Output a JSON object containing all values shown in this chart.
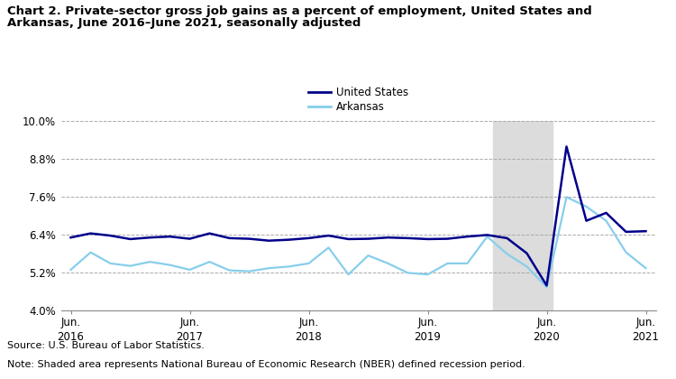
{
  "title_line1": "Chart 2. Private-sector gross job gains as a percent of employment, United States and",
  "title_line2": "Arkansas, June 2016–June 2021, seasonally adjusted",
  "source": "Source: U.S. Bureau of Labor Statistics.",
  "note": "Note: Shaded area represents National Bureau of Economic Research (NBER) defined recession period.",
  "us_data": [
    6.32,
    6.45,
    6.38,
    6.27,
    6.32,
    6.35,
    6.28,
    6.45,
    6.3,
    6.28,
    6.22,
    6.25,
    6.3,
    6.38,
    6.27,
    6.28,
    6.32,
    6.3,
    6.27,
    6.28,
    6.35,
    6.4,
    6.3,
    5.82,
    4.8,
    9.2,
    6.85,
    7.1,
    6.5,
    6.52
  ],
  "ar_data": [
    5.3,
    5.85,
    5.5,
    5.42,
    5.55,
    5.45,
    5.3,
    5.55,
    5.28,
    5.25,
    5.35,
    5.4,
    5.5,
    6.0,
    5.15,
    5.75,
    5.5,
    5.2,
    5.15,
    5.5,
    5.5,
    6.35,
    5.8,
    5.4,
    4.75,
    7.6,
    7.3,
    6.85,
    5.85,
    5.35
  ],
  "us_color": "#00008B",
  "ar_color": "#87CEEB",
  "recession_start": 21.3,
  "recession_end": 24.3,
  "recession_color": "#DCDCDC",
  "ylim": [
    4.0,
    10.0
  ],
  "yticks": [
    4.0,
    5.2,
    6.4,
    7.6,
    8.8,
    10.0
  ],
  "ytick_labels": [
    "4.0%",
    "5.2%",
    "6.4%",
    "7.6%",
    "8.8%",
    "10.0%"
  ],
  "xtick_positions": [
    0,
    6,
    12,
    18,
    24,
    29
  ],
  "xtick_labels": [
    "Jun.\n2016",
    "Jun.\n2017",
    "Jun.\n2018",
    "Jun.\n2019",
    "Jun.\n2020",
    "Jun.\n2021"
  ],
  "legend_labels": [
    "United States",
    "Arkansas"
  ],
  "grid_color": "#AAAAAA",
  "background_color": "#FFFFFF"
}
